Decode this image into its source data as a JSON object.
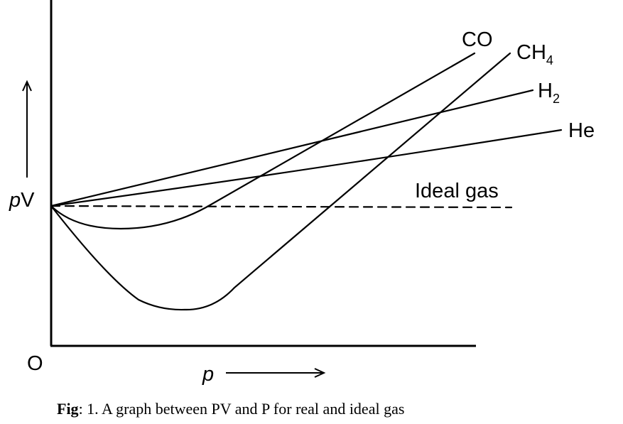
{
  "axes": {
    "y_label": {
      "italic": "p",
      "text": "V"
    },
    "x_label": "p",
    "origin": "O"
  },
  "curves": [
    {
      "label": "CO"
    },
    {
      "label": "CH",
      "subscript": "4"
    },
    {
      "label": "H",
      "subscript": "2"
    },
    {
      "label": "He"
    },
    {
      "label": "Ideal gas"
    }
  ],
  "caption": {
    "bold": "Fig",
    "text": ": 1. A graph between PV and P for real and ideal gas"
  }
}
